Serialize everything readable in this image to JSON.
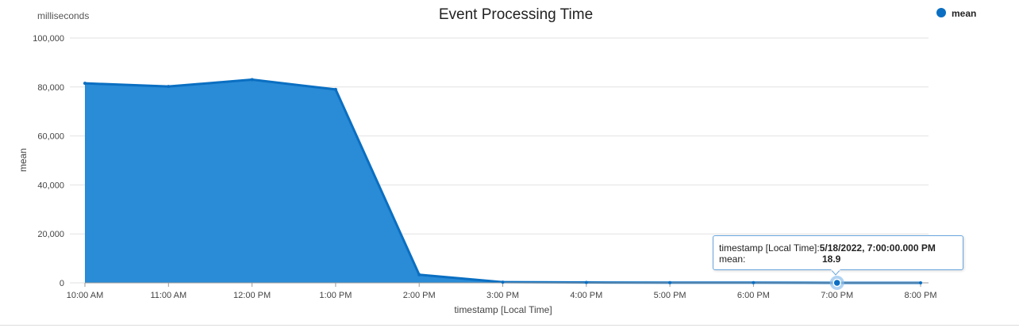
{
  "chart_data": {
    "type": "area",
    "title": "Event Processing Time",
    "units_label": "milliseconds",
    "xlabel": "timestamp [Local Time]",
    "ylabel": "mean",
    "ylim": [
      0,
      100000
    ],
    "y_ticks": [
      "0",
      "20,000",
      "40,000",
      "60,000",
      "80,000",
      "100,000"
    ],
    "y_tick_values": [
      0,
      20000,
      40000,
      60000,
      80000,
      100000
    ],
    "categories": [
      "10:00 AM",
      "11:00 AM",
      "12:00 PM",
      "1:00 PM",
      "2:00 PM",
      "3:00 PM",
      "4:00 PM",
      "5:00 PM",
      "6:00 PM",
      "7:00 PM",
      "8:00 PM"
    ],
    "series": [
      {
        "name": "mean",
        "values": [
          81500,
          80200,
          83000,
          79000,
          3300,
          300,
          150,
          100,
          80,
          18.9,
          20
        ]
      }
    ],
    "grid": true,
    "legend_position": "top-right"
  },
  "colors": {
    "series": "#0a6fc2",
    "fill": "#2a8bd6",
    "grid": "#e2e2e2"
  },
  "legend": {
    "label": "mean"
  },
  "tooltip": {
    "row1_label": "timestamp [Local Time]:",
    "row1_value": "5/18/2022, 7:00:00.000 PM",
    "row2_label": "mean:",
    "row2_value": "18.9",
    "index": 9
  }
}
